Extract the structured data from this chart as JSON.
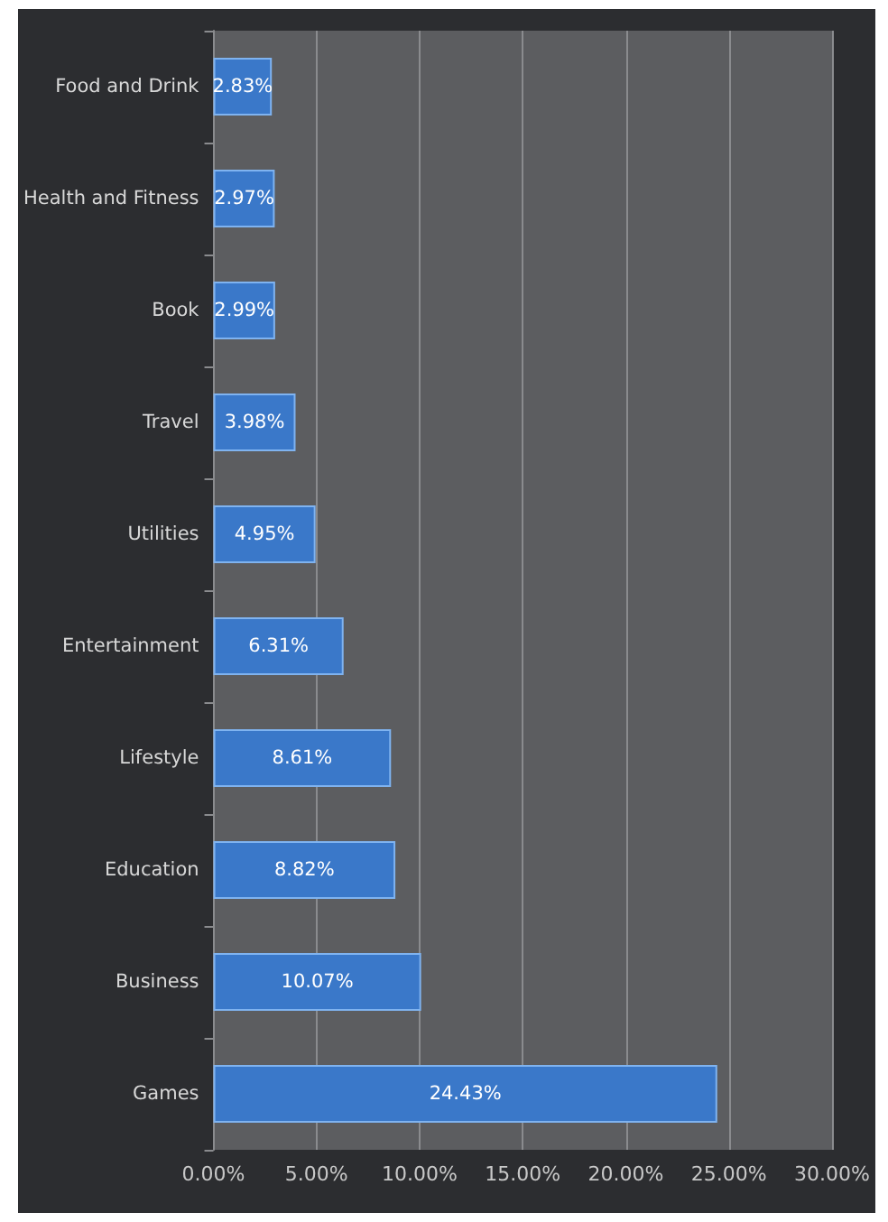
{
  "chart_data": {
    "type": "bar",
    "orientation": "horizontal",
    "categories": [
      "Food and Drink",
      "Health and Fitness",
      "Book",
      "Travel",
      "Utilities",
      "Entertainment",
      "Lifestyle",
      "Education",
      "Business",
      "Games"
    ],
    "values": [
      2.83,
      2.97,
      2.99,
      3.98,
      4.95,
      6.31,
      8.61,
      8.82,
      10.07,
      24.43
    ],
    "value_labels": [
      "2.83%",
      "2.97%",
      "2.99%",
      "3.98%",
      "4.95%",
      "6.31%",
      "8.61%",
      "8.82%",
      "10.07%",
      "24.43%"
    ],
    "color": "#3a78c9",
    "xlim": [
      0,
      30
    ],
    "xticks": [
      {
        "value": 0,
        "label": "0.00%"
      },
      {
        "value": 5,
        "label": "5.00%"
      },
      {
        "value": 10,
        "label": "10.00%"
      },
      {
        "value": 15,
        "label": "15.00%"
      },
      {
        "value": 20,
        "label": "20.00%"
      },
      {
        "value": 25,
        "label": "25.00%"
      },
      {
        "value": 30,
        "label": "30.00%"
      }
    ],
    "grid": "x"
  }
}
